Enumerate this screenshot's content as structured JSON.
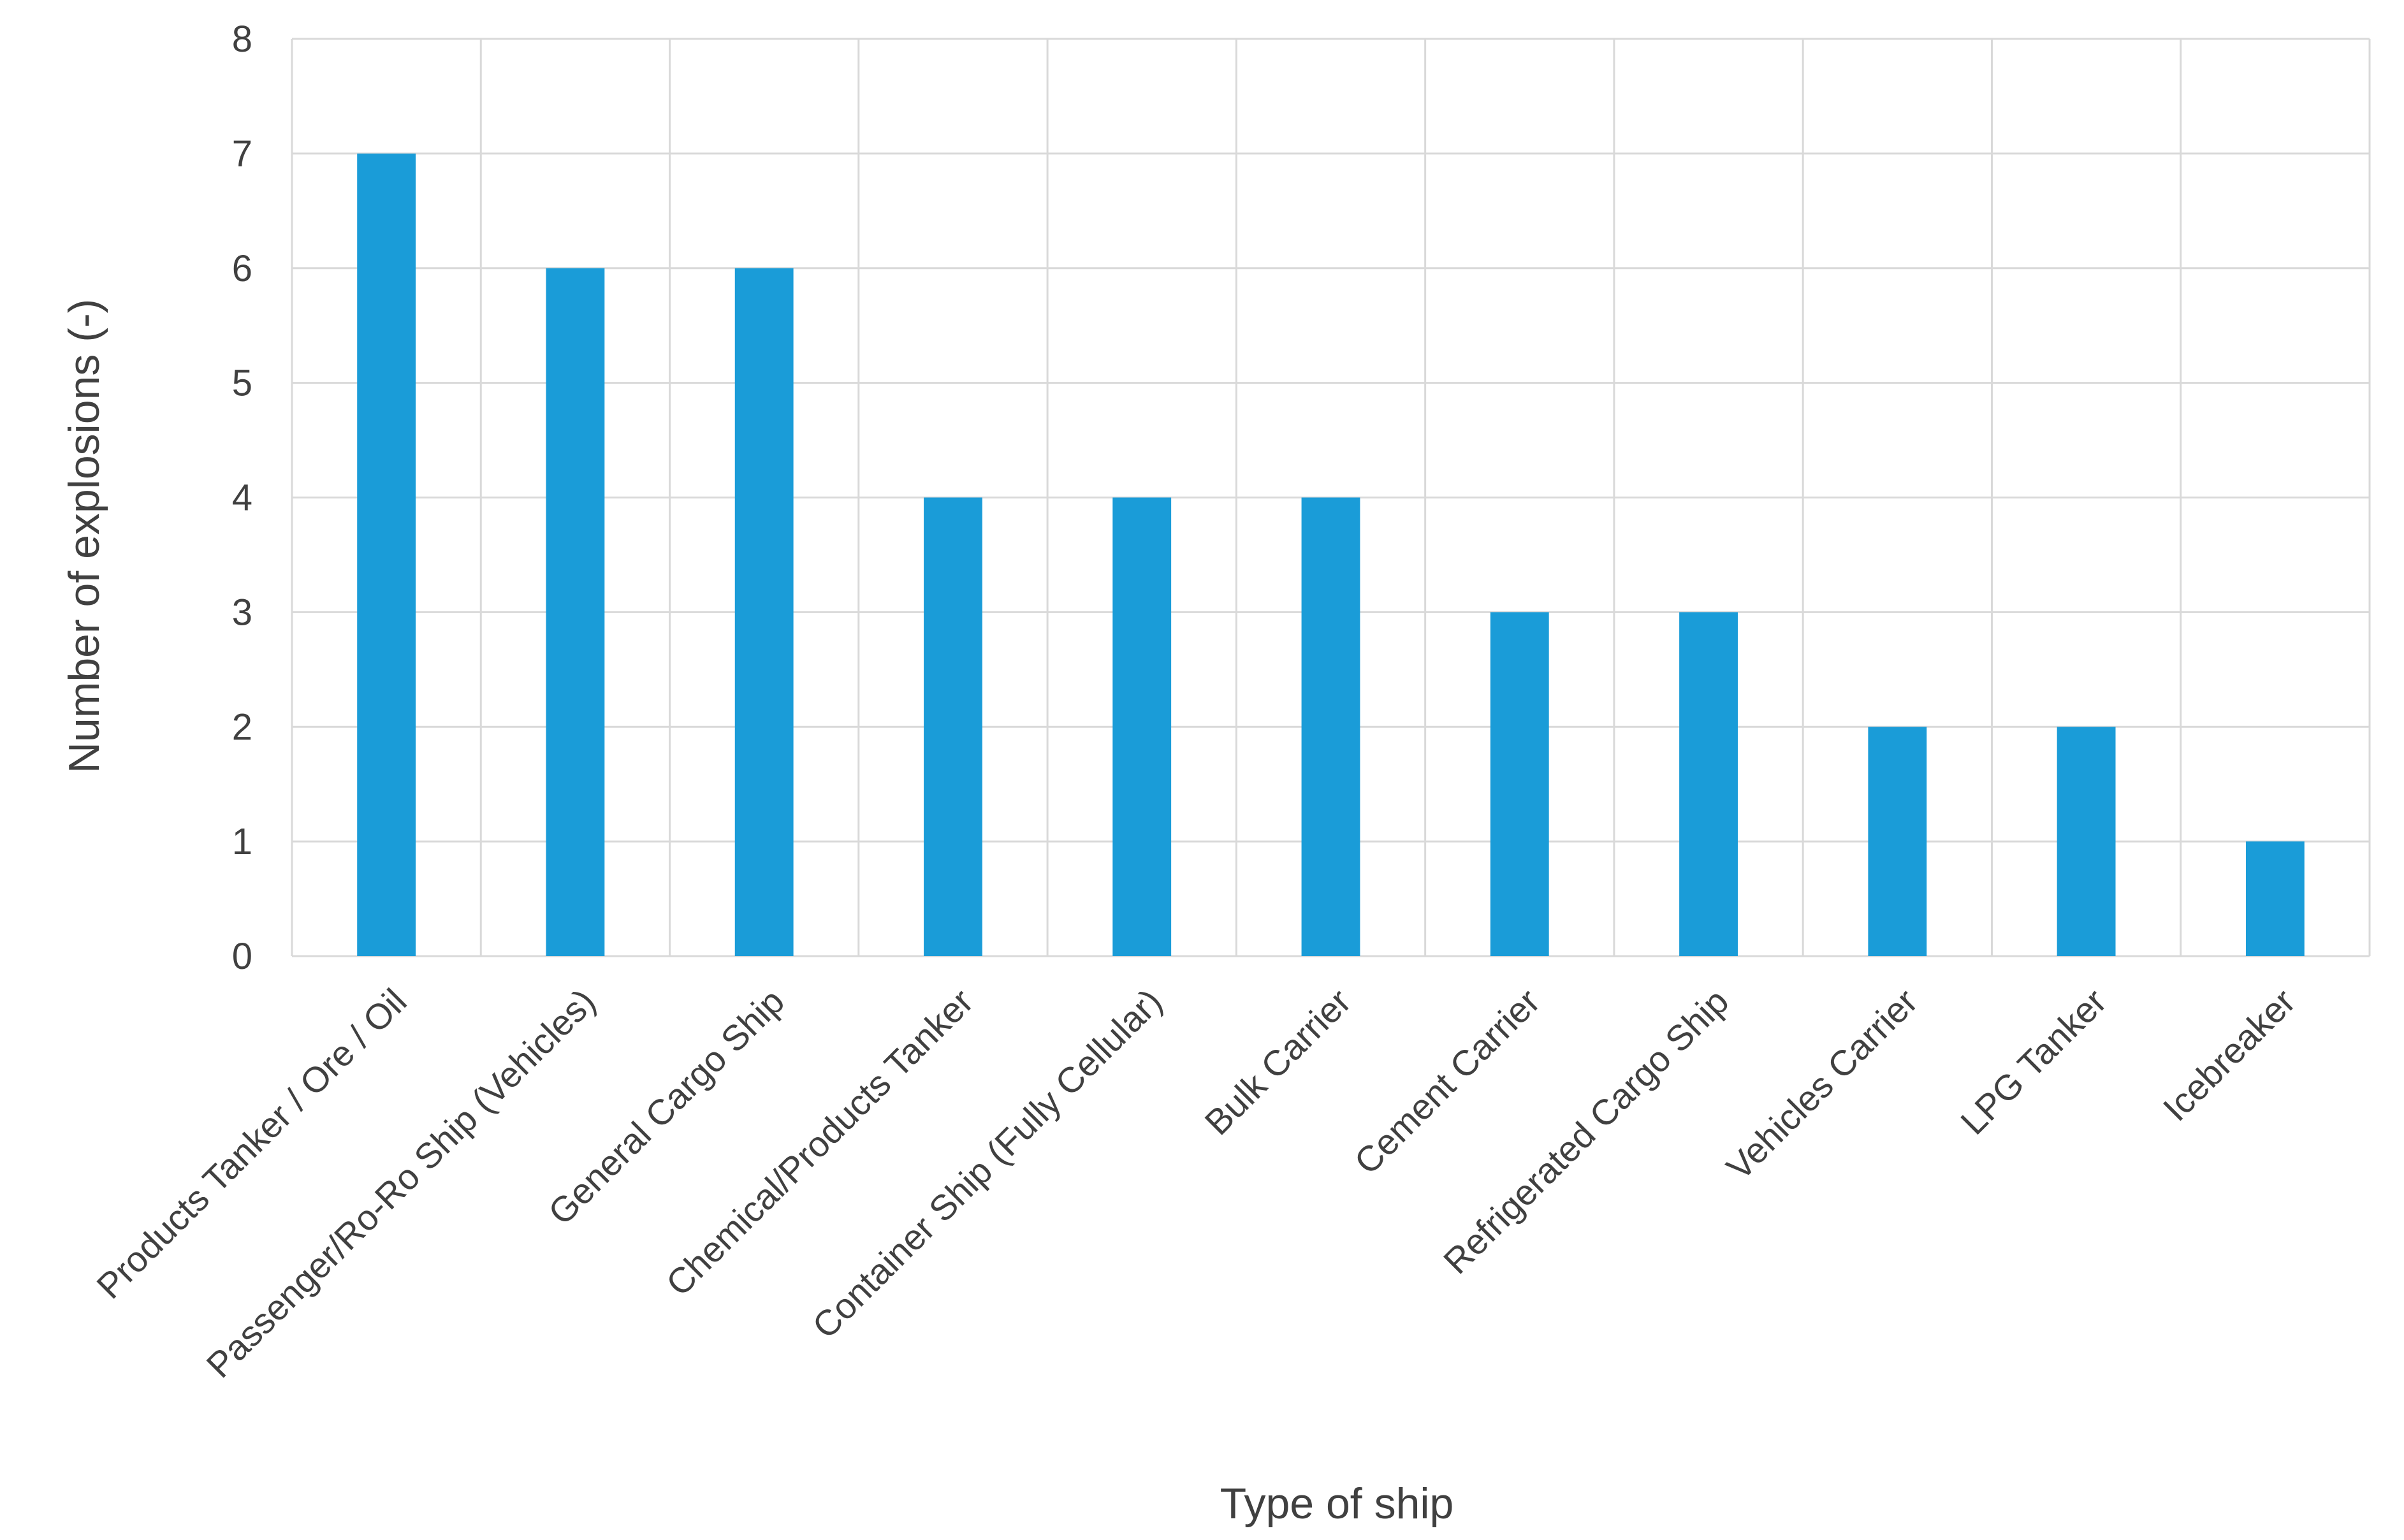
{
  "chart_data": {
    "type": "bar",
    "title": "",
    "xlabel": "Type of ship",
    "ylabel": "Number of explosions (-)",
    "ylim": [
      0,
      8
    ],
    "yticks": [
      0,
      1,
      2,
      3,
      4,
      5,
      6,
      7,
      8
    ],
    "grid": true,
    "legend": "none",
    "bar_color": "#1a9cd8",
    "categories": [
      "Products Tanker / Ore / Oil",
      "Passenger/Ro-Ro Ship (Vehicles)",
      "General Cargo Ship",
      "Chemical/Products Tanker",
      "Container Ship (Fully Cellular)",
      "Bulk Carrier",
      "Cement Carrier",
      "Refrigerated Cargo Ship",
      "Vehicles Carrier",
      "LPG Tanker",
      "Icebreaker"
    ],
    "values": [
      7,
      6,
      6,
      4,
      4,
      4,
      3,
      3,
      2,
      2,
      1
    ]
  }
}
